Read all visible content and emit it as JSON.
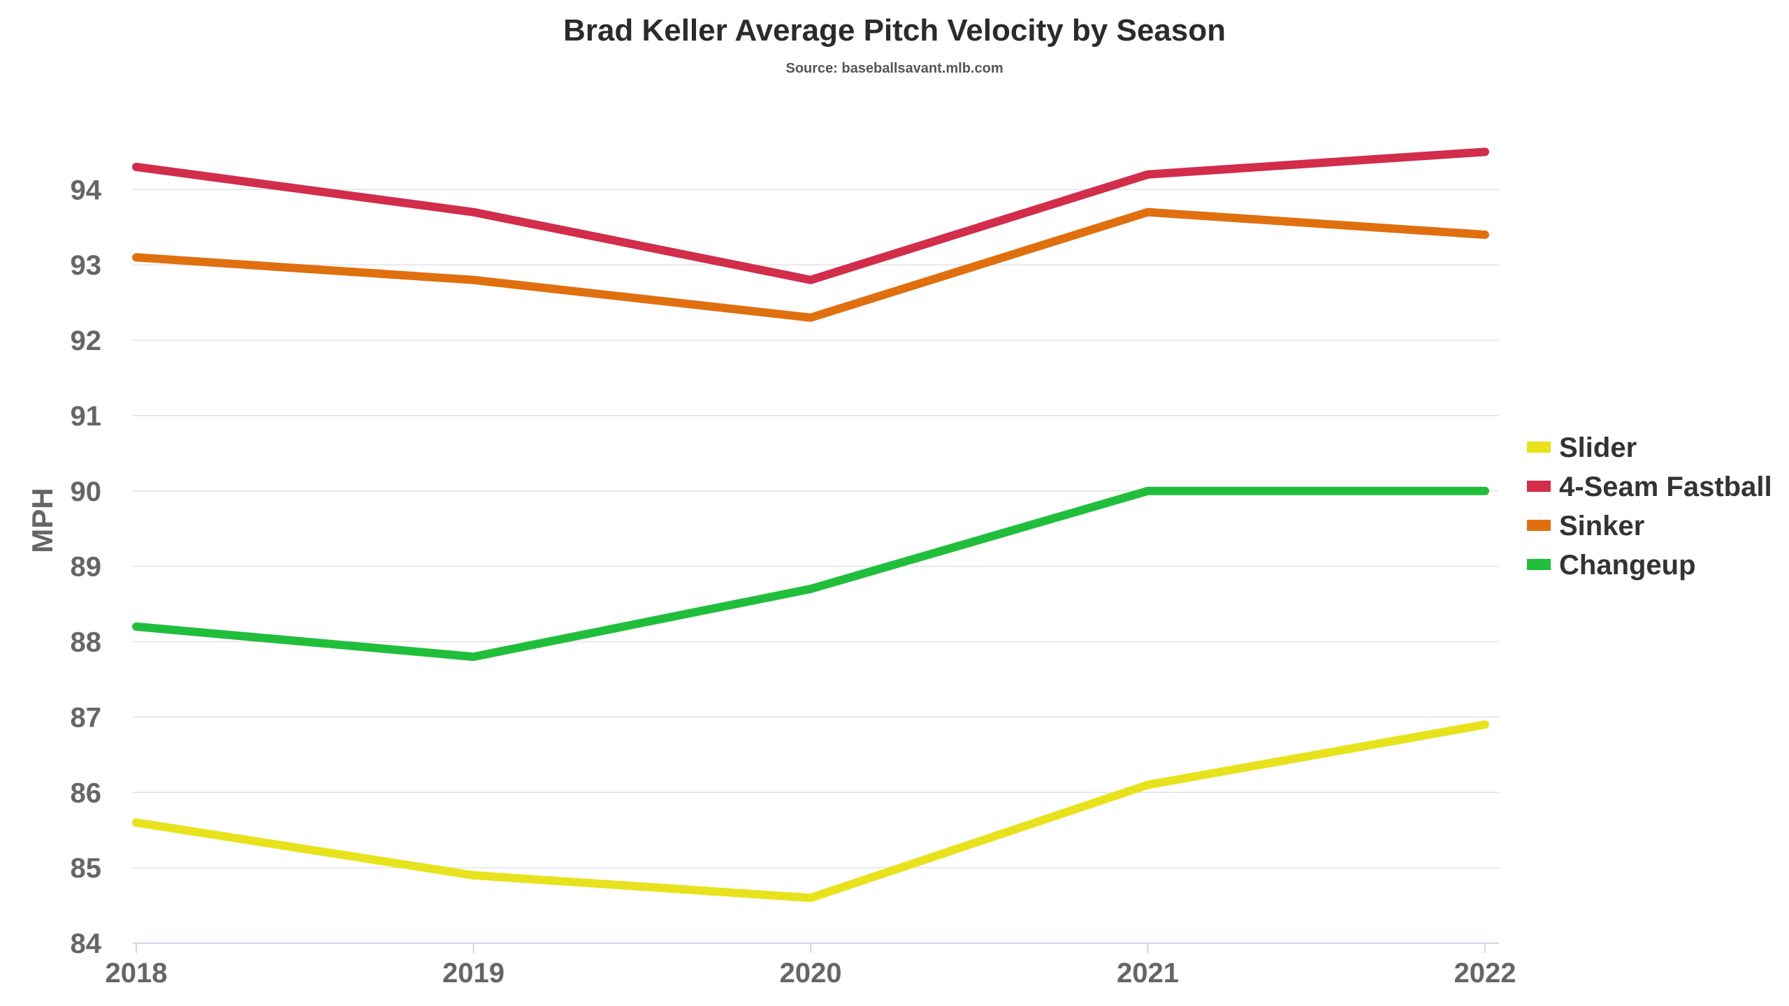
{
  "chart_data": {
    "type": "line",
    "title": "Brad Keller Average Pitch Velocity by Season",
    "subtitle": "Source: baseballsavant.mlb.com",
    "xlabel": "",
    "ylabel": "MPH",
    "x": [
      "2018",
      "2019",
      "2020",
      "2021",
      "2022"
    ],
    "ylim": [
      84,
      94.8
    ],
    "yticks": [
      84,
      85,
      86,
      87,
      88,
      89,
      90,
      91,
      92,
      93,
      94
    ],
    "grid": true,
    "legend_position": "right",
    "series": [
      {
        "name": "Slider",
        "color": "#e8e21d",
        "values": [
          85.6,
          84.9,
          84.6,
          86.1,
          86.9
        ]
      },
      {
        "name": "4-Seam Fastball",
        "color": "#d22d4b",
        "values": [
          94.3,
          93.7,
          92.8,
          94.2,
          94.5
        ]
      },
      {
        "name": "Sinker",
        "color": "#e0700f",
        "values": [
          93.1,
          92.8,
          92.3,
          93.7,
          93.4
        ]
      },
      {
        "name": "Changeup",
        "color": "#21be3c",
        "values": [
          88.2,
          87.8,
          88.7,
          90.0,
          90.0
        ]
      }
    ]
  }
}
